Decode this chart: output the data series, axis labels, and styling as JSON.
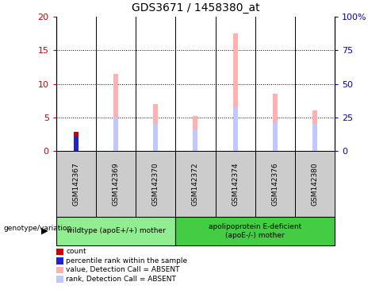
{
  "title": "GDS3671 / 1458380_at",
  "samples": [
    "GSM142367",
    "GSM142369",
    "GSM142370",
    "GSM142372",
    "GSM142374",
    "GSM142376",
    "GSM142380"
  ],
  "red_bars": [
    2.8,
    0,
    0,
    0,
    0,
    0,
    0
  ],
  "blue_bars": [
    2.2,
    0,
    0,
    0,
    0,
    0,
    0
  ],
  "pink_bars": [
    2.8,
    11.5,
    7.0,
    5.2,
    17.5,
    8.5,
    6.0
  ],
  "lightblue_bars": [
    2.2,
    5.0,
    4.0,
    3.2,
    6.5,
    4.3,
    4.0
  ],
  "ylim_left": [
    0,
    20
  ],
  "ylim_right": [
    0,
    100
  ],
  "yticks_left": [
    0,
    5,
    10,
    15,
    20
  ],
  "yticks_right": [
    0,
    25,
    50,
    75,
    100
  ],
  "yticklabels_right": [
    "0",
    "25",
    "50",
    "75",
    "100%"
  ],
  "group1_label": "wildtype (apoE+/+) mother",
  "group2_label": "apolipoprotein E-deficient\n(apoE-/-) mother",
  "group_row_label": "genotype/variation",
  "legend_items": [
    {
      "label": "count",
      "color": "#cc0000"
    },
    {
      "label": "percentile rank within the sample",
      "color": "#2222cc"
    },
    {
      "label": "value, Detection Call = ABSENT",
      "color": "#ffb0b0"
    },
    {
      "label": "rank, Detection Call = ABSENT",
      "color": "#c0c8ff"
    }
  ],
  "left_ytick_color": "#cc0000",
  "right_ytick_color": "#0000cc",
  "background_color": "#ffffff",
  "group1_color": "#90EE90",
  "group2_color": "#44cc44",
  "gray_col_color": "#cccccc",
  "bar_width": 0.12
}
